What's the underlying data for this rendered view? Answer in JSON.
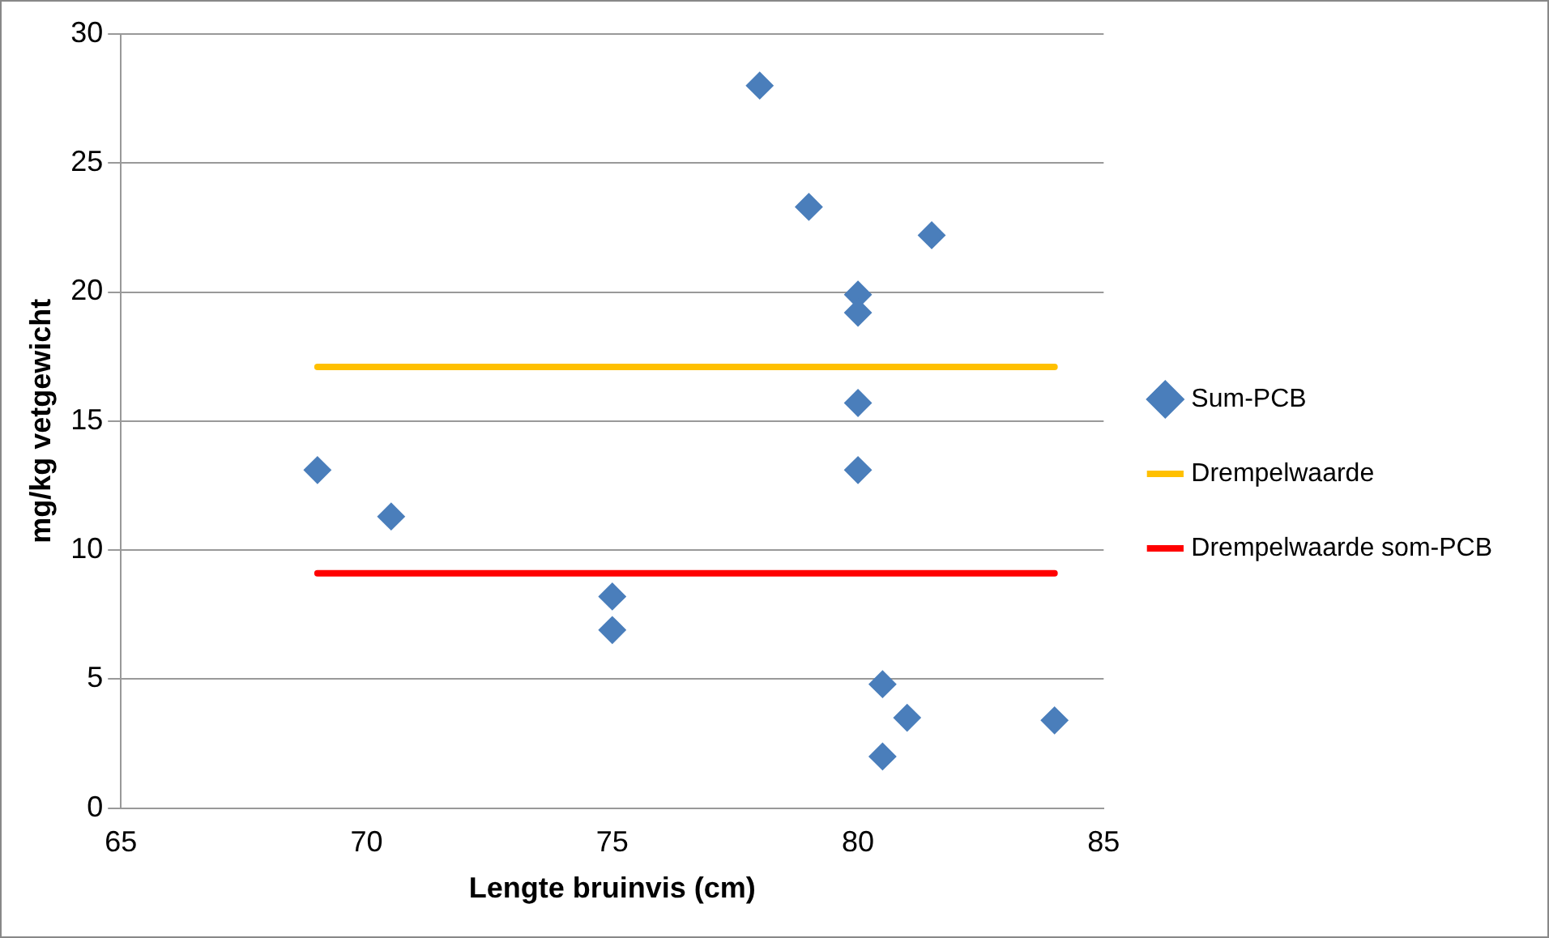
{
  "chart_data": {
    "type": "scatter",
    "xlabel": "Lengte bruinvis (cm)",
    "ylabel": "mg/kg vetgewicht",
    "xlim": [
      65,
      85
    ],
    "xticks": [
      65,
      70,
      75,
      80,
      85
    ],
    "ylim": [
      0,
      30
    ],
    "yticks": [
      0,
      5,
      10,
      15,
      20,
      25,
      30
    ],
    "grid": "y",
    "legend": "right",
    "marker": "diamond",
    "series": [
      {
        "name": "Sum-PCB",
        "color": "#4a7ebb",
        "x": [
          69,
          70.5,
          75,
          75,
          78,
          79,
          81.5,
          80,
          80,
          80,
          80,
          80.5,
          81,
          80.5,
          84
        ],
        "values": [
          13.1,
          11.3,
          8.2,
          6.9,
          28.0,
          23.3,
          22.2,
          19.9,
          19.2,
          15.7,
          13.1,
          4.8,
          3.5,
          2.0,
          3.4
        ]
      },
      {
        "name": "Drempelwaarde",
        "type": "line",
        "marker": "none",
        "color": "#ffc000",
        "x": [
          69,
          84
        ],
        "values": [
          17.1,
          17.1
        ]
      },
      {
        "name": "Drempelwaarde som-PCB",
        "type": "line",
        "marker": "none",
        "color": "#ff0000",
        "x": [
          69,
          84
        ],
        "values": [
          9.1,
          9.1
        ]
      }
    ]
  }
}
